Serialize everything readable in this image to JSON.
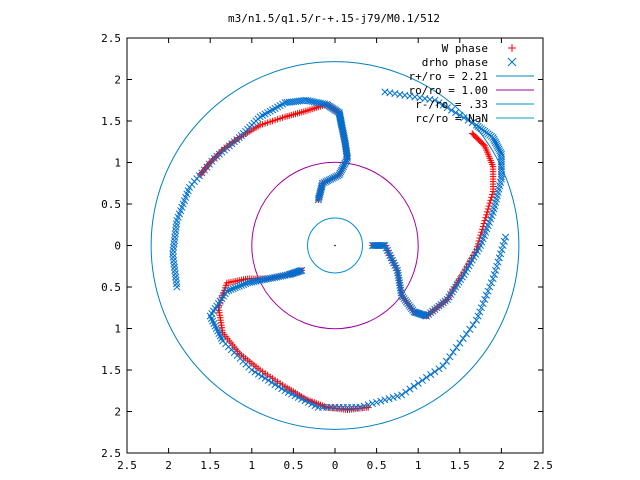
{
  "chart_data": {
    "type": "scatter",
    "title": "m3/n1.5/q1.5/r-+.15-j79/M0.1/512",
    "xlabel": "",
    "ylabel": "",
    "xlim": [
      -2.5,
      2.5
    ],
    "ylim": [
      -2.5,
      2.5
    ],
    "x_ticks": [
      "2.5",
      "2",
      "1.5",
      "1",
      "0.5",
      "0",
      "0.5",
      "1",
      "1.5",
      "2",
      "2.5"
    ],
    "y_ticks": [
      "2.5",
      "2",
      "1.5",
      "1",
      "0.5",
      "0",
      "0.5",
      "1",
      "1.5",
      "2",
      "2.5"
    ],
    "grid": false,
    "legend_position": "top-right",
    "legend": [
      {
        "label": "W phase",
        "marker": "plus",
        "color": "#ff0000"
      },
      {
        "label": "drho phase",
        "marker": "cross",
        "color": "#0070d0"
      },
      {
        "label": "r+/ro = 2.21",
        "marker": "line",
        "color": "#0080c0"
      },
      {
        "label": "ro/ro = 1.00",
        "marker": "line",
        "color": "#a000a0"
      },
      {
        "label": "r-/ro = .33",
        "marker": "line",
        "color": "#0090d0"
      },
      {
        "label": "rc/ro = NaN",
        "marker": "line",
        "color": "#00a0c0"
      }
    ],
    "circles": [
      {
        "name": "r+/ro",
        "radius": 2.21,
        "color": "#0080c0"
      },
      {
        "name": "ro/ro",
        "radius": 1.0,
        "color": "#a000a0"
      },
      {
        "name": "r-/ro",
        "radius": 0.33,
        "color": "#0090d0"
      }
    ],
    "series": [
      {
        "name": "W phase",
        "color": "#ff0000",
        "arms": [
          [
            [
              -0.2,
              0.55
            ],
            [
              -0.15,
              0.75
            ],
            [
              0.05,
              0.85
            ],
            [
              0.15,
              1.05
            ],
            [
              0.12,
              1.25
            ],
            [
              0.08,
              1.45
            ],
            [
              0.05,
              1.6
            ],
            [
              -0.1,
              1.7
            ],
            [
              -0.35,
              1.62
            ],
            [
              -0.6,
              1.55
            ],
            [
              -0.9,
              1.45
            ],
            [
              -1.15,
              1.3
            ],
            [
              -1.35,
              1.15
            ],
            [
              -1.5,
              1.0
            ],
            [
              -1.62,
              0.85
            ]
          ],
          [
            [
              0.45,
              0.0
            ],
            [
              0.6,
              0.0
            ],
            [
              0.75,
              -0.3
            ],
            [
              0.8,
              -0.6
            ],
            [
              0.95,
              -0.8
            ],
            [
              1.1,
              -0.85
            ],
            [
              1.35,
              -0.65
            ],
            [
              1.5,
              -0.4
            ],
            [
              1.7,
              -0.05
            ],
            [
              1.8,
              0.3
            ],
            [
              1.9,
              0.65
            ],
            [
              1.9,
              0.95
            ],
            [
              1.8,
              1.2
            ],
            [
              1.65,
              1.35
            ]
          ],
          [
            [
              -0.4,
              -0.3
            ],
            [
              -0.55,
              -0.35
            ],
            [
              -0.8,
              -0.4
            ],
            [
              -1.05,
              -0.4
            ],
            [
              -1.3,
              -0.45
            ],
            [
              -1.4,
              -0.75
            ],
            [
              -1.35,
              -1.05
            ],
            [
              -1.15,
              -1.3
            ],
            [
              -0.9,
              -1.5
            ],
            [
              -0.6,
              -1.7
            ],
            [
              -0.35,
              -1.85
            ],
            [
              -0.1,
              -1.95
            ],
            [
              0.15,
              -1.98
            ],
            [
              0.4,
              -1.95
            ]
          ]
        ]
      },
      {
        "name": "drho phase",
        "color": "#0070d0",
        "arms": [
          [
            [
              -0.2,
              0.55
            ],
            [
              -0.15,
              0.75
            ],
            [
              0.05,
              0.85
            ],
            [
              0.15,
              1.05
            ],
            [
              0.12,
              1.25
            ],
            [
              0.08,
              1.45
            ],
            [
              0.05,
              1.6
            ],
            [
              -0.1,
              1.7
            ],
            [
              -0.35,
              1.75
            ],
            [
              -0.6,
              1.72
            ],
            [
              -0.9,
              1.55
            ],
            [
              -1.15,
              1.3
            ],
            [
              -1.45,
              1.05
            ],
            [
              -1.75,
              0.7
            ],
            [
              -1.9,
              0.3
            ],
            [
              -1.95,
              -0.1
            ],
            [
              -1.9,
              -0.5
            ]
          ],
          [
            [
              0.45,
              0.0
            ],
            [
              0.6,
              0.0
            ],
            [
              0.75,
              -0.3
            ],
            [
              0.8,
              -0.6
            ],
            [
              0.95,
              -0.8
            ],
            [
              1.1,
              -0.85
            ],
            [
              1.35,
              -0.65
            ],
            [
              1.55,
              -0.35
            ],
            [
              1.75,
              0.0
            ],
            [
              1.9,
              0.4
            ],
            [
              2.0,
              0.8
            ],
            [
              2.0,
              1.1
            ],
            [
              1.9,
              1.3
            ],
            [
              1.7,
              1.45
            ],
            [
              1.2,
              1.75
            ],
            [
              0.6,
              1.85
            ]
          ],
          [
            [
              -0.4,
              -0.3
            ],
            [
              -0.55,
              -0.35
            ],
            [
              -0.8,
              -0.4
            ],
            [
              -1.05,
              -0.45
            ],
            [
              -1.3,
              -0.55
            ],
            [
              -1.5,
              -0.85
            ],
            [
              -1.35,
              -1.15
            ],
            [
              -1.0,
              -1.5
            ],
            [
              -0.6,
              -1.75
            ],
            [
              -0.2,
              -1.95
            ],
            [
              0.3,
              -1.95
            ],
            [
              0.8,
              -1.8
            ],
            [
              1.3,
              -1.45
            ],
            [
              1.7,
              -0.9
            ],
            [
              1.9,
              -0.4
            ],
            [
              2.05,
              0.1
            ]
          ]
        ]
      }
    ]
  }
}
